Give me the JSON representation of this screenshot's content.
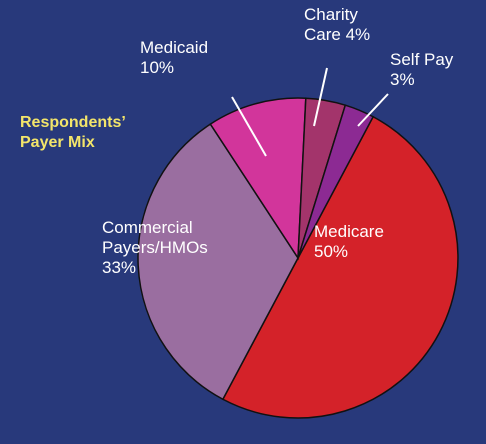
{
  "chart_data": {
    "type": "pie",
    "title": "Respondents’ Payer Mix",
    "categories": [
      "Medicare",
      "Commercial Payers/HMOs",
      "Medicaid",
      "Charity Care",
      "Self Pay"
    ],
    "values": [
      50,
      33,
      10,
      4,
      3
    ],
    "value_labels": [
      "50%",
      "33%",
      "10%",
      "4%",
      "3%"
    ],
    "colors": [
      "#d42229",
      "#9a6ea0",
      "#d2359b",
      "#a3346b",
      "#8c2a93"
    ]
  }
}
